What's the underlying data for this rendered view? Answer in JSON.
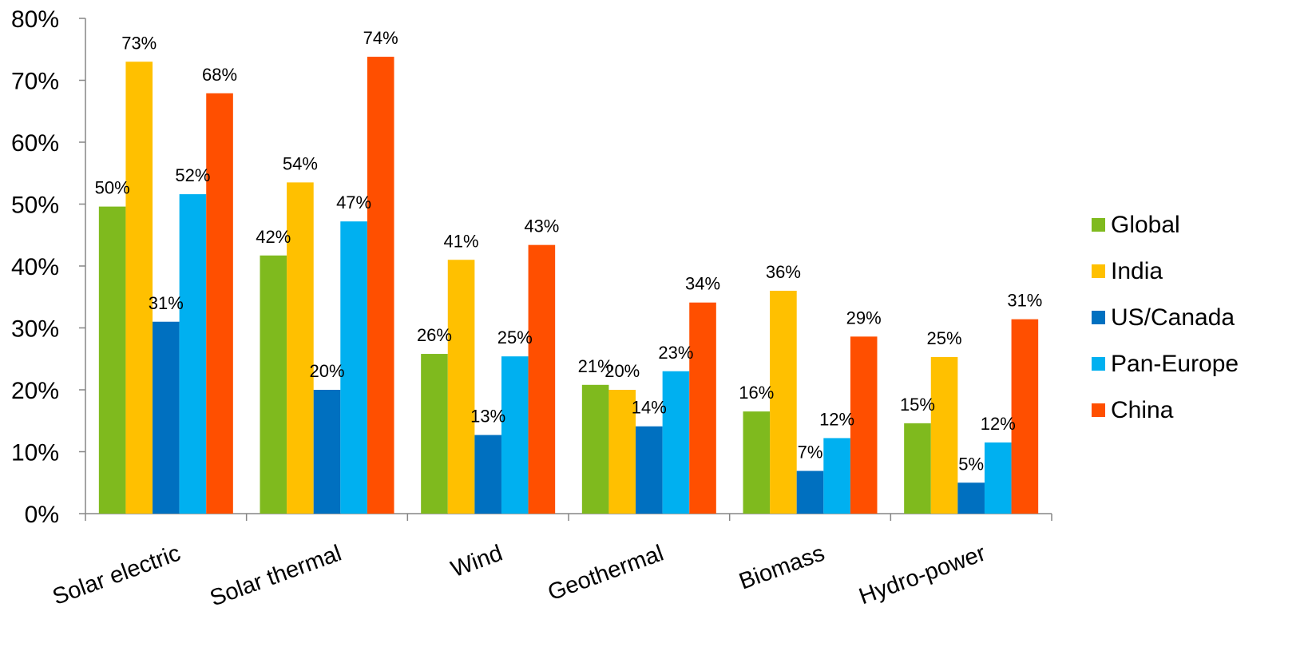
{
  "chart_data": {
    "type": "bar",
    "title": "",
    "xlabel": "",
    "ylabel": "",
    "ylim": [
      0,
      80
    ],
    "yticks": [
      "0%",
      "10%",
      "20%",
      "30%",
      "40%",
      "50%",
      "60%",
      "70%",
      "80%"
    ],
    "ytick_values": [
      0,
      10,
      20,
      30,
      40,
      50,
      60,
      70,
      80
    ],
    "grid": false,
    "legend_position": "right",
    "categories": [
      "Solar electric",
      "Solar thermal",
      "Wind",
      "Geothermal",
      "Biomass",
      "Hydro-power"
    ],
    "series": [
      {
        "name": "Global",
        "color": "#7fba1e",
        "values": [
          49.6,
          41.7,
          25.8,
          20.8,
          16.5,
          14.6
        ],
        "labels": [
          "50%",
          "42%",
          "26%",
          "21%",
          "16%",
          "15%"
        ]
      },
      {
        "name": "India",
        "color": "#ffc000",
        "values": [
          73.0,
          53.5,
          41.0,
          20.0,
          36.0,
          25.3
        ],
        "labels": [
          "73%",
          "54%",
          "41%",
          "20%",
          "36%",
          "25%"
        ]
      },
      {
        "name": "US/Canada",
        "color": "#0070c0",
        "values": [
          31.0,
          20.0,
          12.7,
          14.1,
          6.9,
          5.0
        ],
        "labels": [
          "31%",
          "20%",
          "13%",
          "14%",
          "7%",
          "5%"
        ]
      },
      {
        "name": "Pan-Europe",
        "color": "#00b0f0",
        "values": [
          51.6,
          47.2,
          25.4,
          23.0,
          12.2,
          11.5
        ],
        "labels": [
          "52%",
          "47%",
          "25%",
          "23%",
          "12%",
          "12%"
        ]
      },
      {
        "name": "China",
        "color": "#ff4f00",
        "values": [
          67.9,
          73.8,
          43.4,
          34.1,
          28.6,
          31.4
        ],
        "labels": [
          "68%",
          "74%",
          "43%",
          "34%",
          "29%",
          "31%"
        ]
      }
    ]
  }
}
